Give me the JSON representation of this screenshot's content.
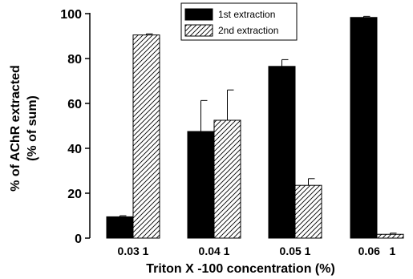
{
  "chart_data": {
    "type": "bar",
    "xlabel": "Triton X -100 concentration (%)",
    "ylabel_line1": "% of AChR extracted",
    "ylabel_line2": "(% of sum)",
    "ylim": [
      0,
      100
    ],
    "yticks": [
      "0",
      "20",
      "40",
      "60",
      "80",
      "100"
    ],
    "categories": [
      "0.03 1",
      "0.04 1",
      "0.05 1",
      "0.06   1"
    ],
    "series": [
      {
        "name": "1st extraction",
        "fill": "#000000",
        "pattern": "solid",
        "values": [
          9.5,
          47.5,
          76.5,
          98.3
        ],
        "errors": [
          0.5,
          13.8,
          3.0,
          0.5
        ]
      },
      {
        "name": "2nd extraction",
        "fill": "#ffffff",
        "pattern": "hatch",
        "values": [
          90.5,
          52.5,
          23.5,
          1.7
        ],
        "errors": [
          0.5,
          13.5,
          3.0,
          0.5
        ]
      }
    ],
    "legend_position": "top-center",
    "grid": false
  }
}
